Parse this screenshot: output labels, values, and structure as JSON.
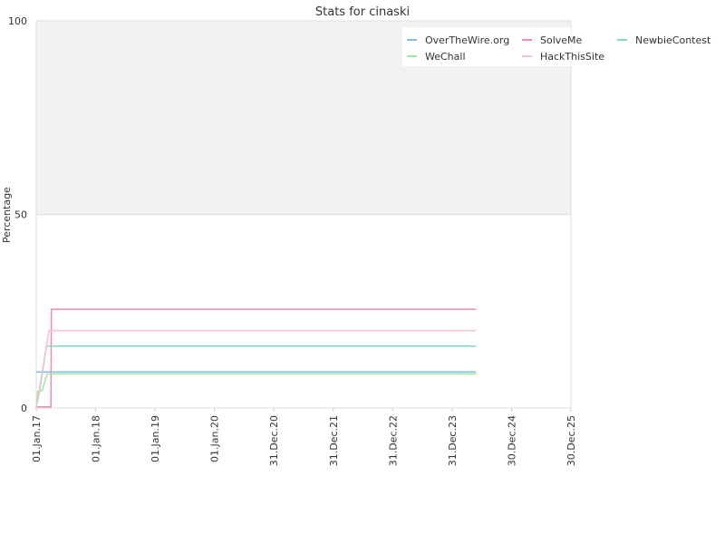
{
  "chart_data": {
    "type": "line",
    "title": "Stats for cinaski",
    "xlabel": "",
    "ylabel": "Percentage",
    "ylim": [
      0,
      100
    ],
    "y_ticks": [
      "0",
      "50",
      "100"
    ],
    "x_ticks": [
      "01.Jan.17",
      "01.Jan.18",
      "01.Jan.19",
      "01.Jan.20",
      "31.Dec.20",
      "31.Dec.21",
      "31.Dec.22",
      "31.Dec.23",
      "30.Dec.24",
      "30.Dec.25"
    ],
    "x_tick_dates": [
      "2017-01-01",
      "2018-01-01",
      "2019-01-01",
      "2020-01-01",
      "2020-12-31",
      "2021-12-31",
      "2022-12-31",
      "2023-12-31",
      "2024-12-30",
      "2025-12-30"
    ],
    "xlim": [
      "2017-01-01",
      "2025-12-30"
    ],
    "grid": true,
    "band_above": 50,
    "legend_position": "top-right",
    "series": [
      {
        "name": "OverTheWire.org",
        "color": "#7fbfe8",
        "points": [
          [
            "2017-01-01",
            9.3
          ],
          [
            "2024-05-25",
            9.3
          ]
        ]
      },
      {
        "name": "SolveMe",
        "color": "#f08ab8",
        "points": [
          [
            "2017-01-01",
            0.3
          ],
          [
            "2017-04-01",
            0.3
          ],
          [
            "2017-04-04",
            25.5
          ],
          [
            "2024-05-25",
            25.5
          ]
        ]
      },
      {
        "name": "NewbieContest",
        "color": "#7fdcc0",
        "points": [
          [
            "2017-01-01",
            0
          ],
          [
            "2017-01-20",
            4
          ],
          [
            "2017-03-05",
            16
          ],
          [
            "2024-05-25",
            16
          ]
        ]
      },
      {
        "name": "WeChall",
        "color": "#9ee79e",
        "points": [
          [
            "2017-01-01",
            0
          ],
          [
            "2017-01-10",
            4.3
          ],
          [
            "2017-02-05",
            4.5
          ],
          [
            "2017-03-10",
            8.8
          ],
          [
            "2024-05-25",
            8.8
          ]
        ]
      },
      {
        "name": "HackThisSite",
        "color": "#f4c0d4",
        "points": [
          [
            "2017-01-01",
            0
          ],
          [
            "2017-03-20",
            20
          ],
          [
            "2024-05-25",
            20
          ]
        ]
      }
    ]
  }
}
